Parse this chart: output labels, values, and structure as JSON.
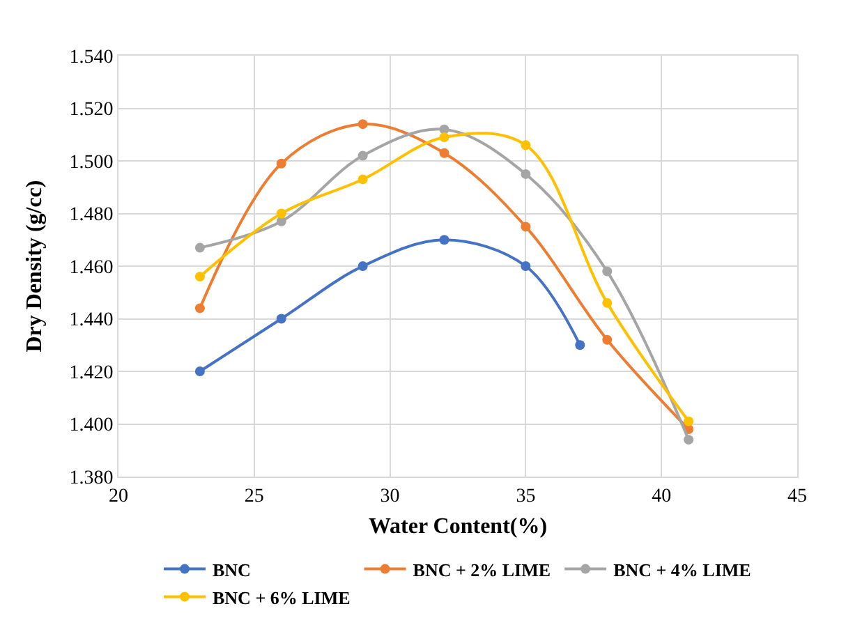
{
  "chart_data": {
    "type": "line",
    "xlabel": "Water Content(%)",
    "ylabel": "Dry Density (g/cc)",
    "xlim": [
      20,
      45
    ],
    "xticks": [
      20,
      25,
      30,
      35,
      40,
      45
    ],
    "ylim": [
      1.38,
      1.54
    ],
    "yticks": [
      {
        "value": 1.38,
        "label": "1.380"
      },
      {
        "value": 1.4,
        "label": "1.400"
      },
      {
        "value": 1.42,
        "label": "1.420"
      },
      {
        "value": 1.44,
        "label": "1.440"
      },
      {
        "value": 1.46,
        "label": "1.460"
      },
      {
        "value": 1.48,
        "label": "1.480"
      },
      {
        "value": 1.5,
        "label": "1.500"
      },
      {
        "value": 1.52,
        "label": "1.520"
      },
      {
        "value": 1.54,
        "label": "1.540"
      }
    ],
    "grid": true,
    "legend": "bottom",
    "marker": "circle",
    "line_style": "solid",
    "series": [
      {
        "name": "BNC",
        "color": "#4472c4",
        "x": [
          23,
          26,
          29,
          32,
          35,
          37
        ],
        "values": [
          1.42,
          1.44,
          1.46,
          1.47,
          1.46,
          1.43
        ]
      },
      {
        "name": "BNC + 2% LIME",
        "color": "#ed7d31",
        "x": [
          23,
          26,
          29,
          32,
          35,
          38,
          41
        ],
        "values": [
          1.444,
          1.499,
          1.514,
          1.503,
          1.475,
          1.432,
          1.398
        ]
      },
      {
        "name": "BNC + 4% LIME",
        "color": "#a5a5a5",
        "x": [
          23,
          26,
          29,
          32,
          35,
          38,
          41
        ],
        "values": [
          1.467,
          1.477,
          1.502,
          1.512,
          1.495,
          1.458,
          1.394
        ]
      },
      {
        "name": "BNC + 6% LIME",
        "color": "#ffc000",
        "x": [
          23,
          26,
          29,
          32,
          35,
          38,
          41
        ],
        "values": [
          1.456,
          1.48,
          1.493,
          1.509,
          1.506,
          1.446,
          1.401
        ]
      }
    ]
  }
}
